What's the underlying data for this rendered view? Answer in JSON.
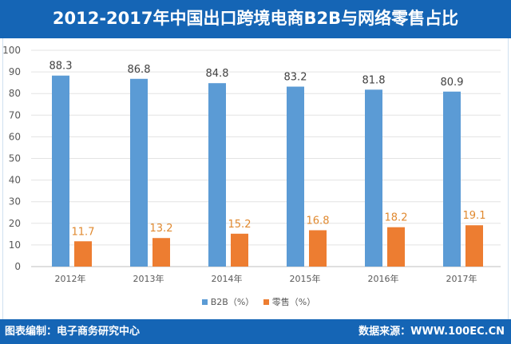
{
  "header": {
    "title": "2012-2017年中国出口跨境电商B2B与网络零售占比"
  },
  "footer": {
    "left": "图表编制：电子商务研究中心",
    "right": "数据来源：WWW.100EC.CN"
  },
  "chart_data": {
    "type": "bar",
    "title": "2012-2017年中国出口跨境电商B2B与网络零售占比",
    "categories": [
      "2012年",
      "2013年",
      "2014年",
      "2015年",
      "2016年",
      "2017年"
    ],
    "series": [
      {
        "name": "B2B（%）",
        "color": "#5b9bd5",
        "label_color": "#404040",
        "values": [
          88.3,
          86.8,
          84.8,
          83.2,
          81.8,
          80.9
        ]
      },
      {
        "name": "零售（%）",
        "color": "#ed7d31",
        "label_color": "#e0892f",
        "values": [
          11.7,
          13.2,
          15.2,
          16.8,
          18.2,
          19.1
        ]
      }
    ],
    "ylim": [
      0,
      100
    ],
    "yticks": [
      0,
      10,
      20,
      30,
      40,
      50,
      60,
      70,
      80,
      90,
      100
    ],
    "grid": true,
    "legend": "bottom",
    "xlabel": "",
    "ylabel": ""
  }
}
